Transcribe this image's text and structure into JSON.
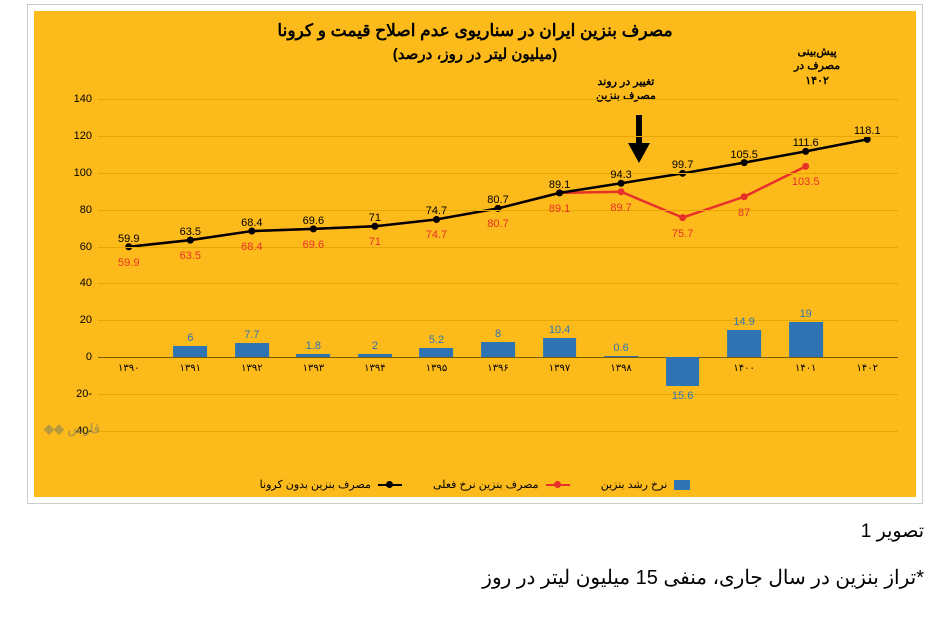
{
  "chart": {
    "type": "combo-line-bar",
    "background_color": "#fdbb1b",
    "border_color": "#cccccc",
    "title": "مصرف بنزین ایران در سناریوی عدم اصلاح قیمت و کرونا",
    "subtitle": "(میلیون لیتر در روز، درصد)",
    "title_fontsize": 17,
    "subtitle_fontsize": 15,
    "title_color": "#000000",
    "categories": [
      "۱۳۹۰",
      "۱۳۹۱",
      "۱۳۹۲",
      "۱۳۹۳",
      "۱۳۹۴",
      "۱۳۹۵",
      "۱۳۹۶",
      "۱۳۹۷",
      "۱۳۹۸",
      "۱۳۹۹",
      "۱۴۰۰",
      "۱۴۰۱",
      "۱۴۰۲"
    ],
    "y_axis": {
      "min": -40,
      "max": 140,
      "step": 20,
      "label_fontsize": 11,
      "grid_color": "#e6a800",
      "zero_color": "#7a5a00"
    },
    "series_black": {
      "name": "مصرف بنزین بدون کرونا",
      "color": "#000000",
      "line_width": 2.5,
      "marker": "circle",
      "marker_size": 5,
      "values": [
        59.9,
        63.5,
        68.4,
        69.6,
        71,
        74.7,
        80.7,
        89.1,
        94.3,
        99.7,
        105.5,
        111.6,
        118.1
      ],
      "label_offset": -14
    },
    "series_red": {
      "name": "مصرف بنزین نرخ فعلی",
      "color": "#e7302a",
      "line_width": 2.5,
      "marker": "circle",
      "marker_size": 5,
      "values": [
        59.9,
        63.5,
        68.4,
        69.6,
        71,
        74.7,
        80.7,
        89.1,
        89.7,
        75.7,
        87,
        103.5,
        null
      ],
      "label_offset": 10
    },
    "series_bars": {
      "name": "نرخ رشد بنزین",
      "color": "#2e74b5",
      "bar_width_pct": 0.55,
      "values": [
        null,
        6,
        7.7,
        1.8,
        2,
        5.2,
        8,
        10.4,
        0.6,
        -15.6,
        14.9,
        19,
        null
      ],
      "label_fontsize": 11
    },
    "annotations": {
      "arrow_text": "تغییر در روند\nمصرف بنزین",
      "forecast_text": "پیش‌بینی\nمصرف در\n۱۴۰۲",
      "arrow_color": "#000000"
    },
    "legend_fontsize": 11
  },
  "watermark": "فارس ◆◆",
  "caption": {
    "line1": "تصویر 1",
    "line2": "*تراز بنزین در سال جاری، منفی 15 میلیون لیتر در روز",
    "fontsize1": 19,
    "fontsize2": 20
  }
}
